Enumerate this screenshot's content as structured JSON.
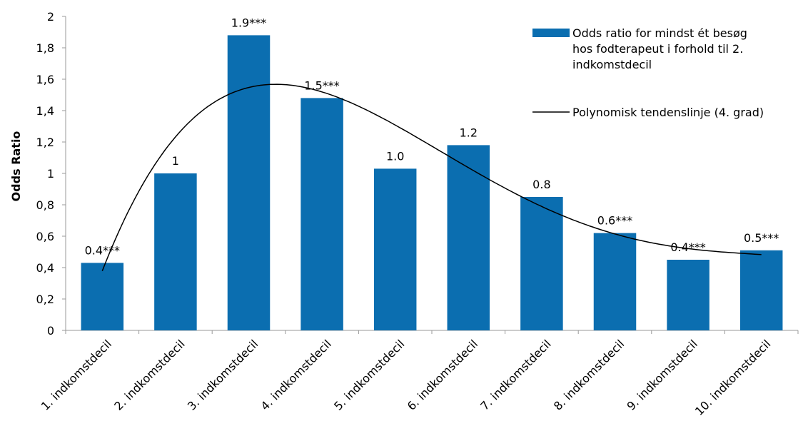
{
  "chart_data": {
    "type": "bar",
    "title": "",
    "xlabel": "",
    "ylabel": "Odds Ratio",
    "ylim": [
      0,
      2
    ],
    "ytick_labels": [
      "0",
      "0,2",
      "0,4",
      "0,6",
      "0,8",
      "1",
      "1,2",
      "1,4",
      "1,6",
      "1,8",
      "2"
    ],
    "categories": [
      "1. indkomstdecil",
      "2. indkomstdecil",
      "3. indkomstdecil",
      "4. indkomstdecil",
      "5. indkomstdecil",
      "6. indkomstdecil",
      "7. indkomstdecil",
      "8. indkomstdecil",
      "9. indkomstdecil",
      "10. indkomstdecil"
    ],
    "series": [
      {
        "name": "Odds ratio for mindst ét besøg hos fodterapeut i forhold til 2. indkomstdecil",
        "type": "bar",
        "color": "#0b6eb0",
        "values": [
          0.43,
          1.0,
          1.88,
          1.48,
          1.03,
          1.18,
          0.85,
          0.62,
          0.45,
          0.51
        ],
        "data_labels": [
          "0.4***",
          "1",
          "1.9***",
          "1.5***",
          "1.0",
          "1.2",
          "0.8",
          "0.6***",
          "0.4***",
          "0.5***"
        ]
      },
      {
        "name": "Polynomisk tendenslinje (4. grad)",
        "type": "line",
        "color": "#000000",
        "polynomial_degree": 4
      }
    ],
    "legend_position": "top-right",
    "legend": [
      [
        "Odds ratio for mindst ét besøg",
        "hos fodterapeut i forhold til 2.",
        "indkomstdecil"
      ],
      [
        "Polynomisk tendenslinje (4. grad)"
      ]
    ],
    "grid": false
  }
}
